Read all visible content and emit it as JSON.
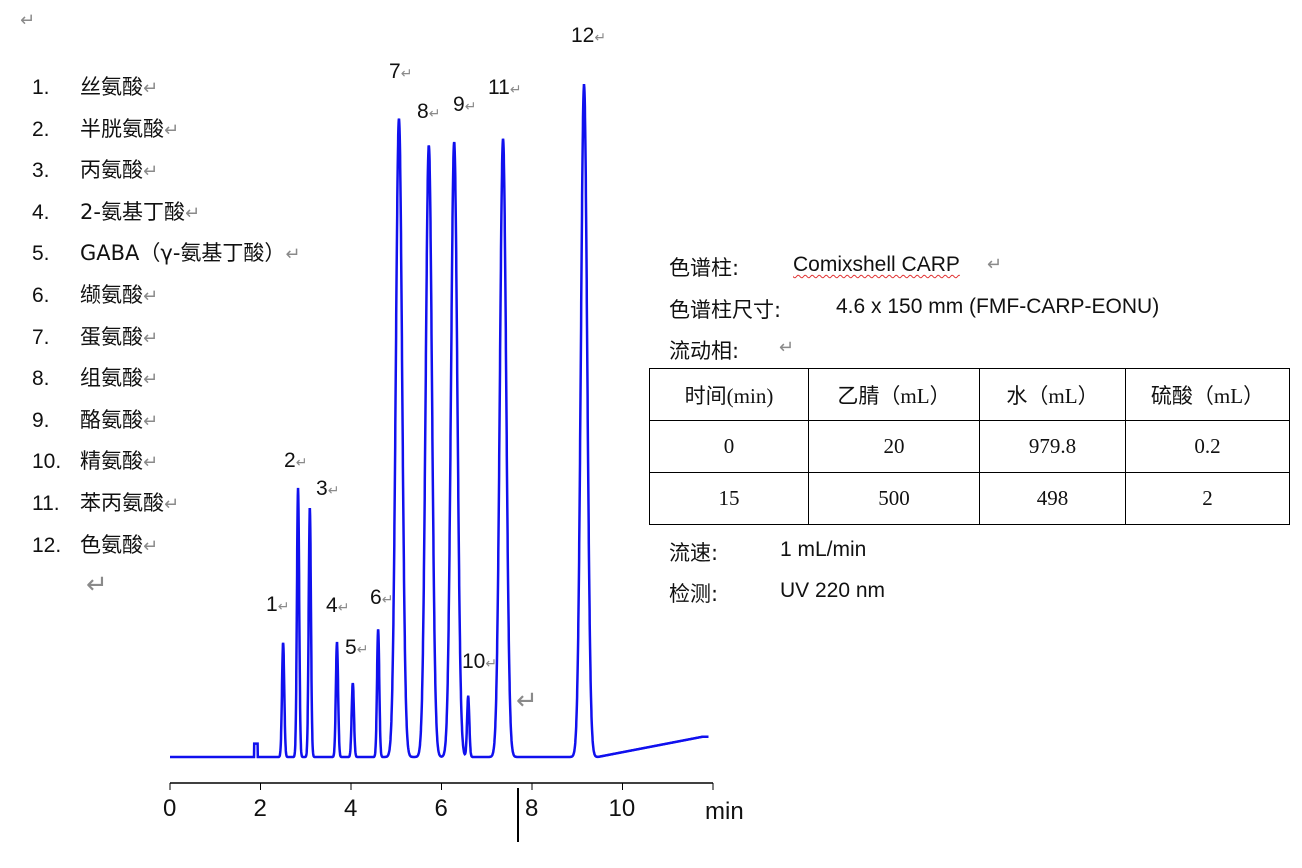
{
  "list": [
    {
      "n": "1.",
      "t": "丝氨酸"
    },
    {
      "n": "2.",
      "t": "半胱氨酸"
    },
    {
      "n": "3.",
      "t": "丙氨酸"
    },
    {
      "n": "4.",
      "t": "2-氨基丁酸"
    },
    {
      "n": "5.",
      "t": "GABA（γ-氨基丁酸）"
    },
    {
      "n": "6.",
      "t": "缬氨酸"
    },
    {
      "n": "7.",
      "t": "蛋氨酸"
    },
    {
      "n": "8.",
      "t": "组氨酸"
    },
    {
      "n": "9.",
      "t": "酪氨酸"
    },
    {
      "n": "10.",
      "t": "精氨酸"
    },
    {
      "n": "11.",
      "t": "苯丙氨酸"
    },
    {
      "n": "12.",
      "t": "色氨酸"
    }
  ],
  "return_mark": "↵",
  "info": {
    "column_label": "色谱柱:",
    "column_value": "Comixshell CARP",
    "size_label": "色谱柱尺寸:",
    "size_value": "4.6 x 150 mm (FMF-CARP-EONU)",
    "mobile_label": "流动相:",
    "flow_label": "流速:",
    "flow_value": "1 mL/min",
    "detect_label": "检测:",
    "detect_value": "UV 220 nm"
  },
  "table": {
    "headers": [
      "时间(min)",
      "乙腈（mL）",
      "水（mL）",
      "硫酸（mL）"
    ],
    "rows": [
      [
        "0",
        "20",
        "979.8",
        "0.2"
      ],
      [
        "15",
        "500",
        "498",
        "2"
      ]
    ]
  },
  "chart_data": {
    "type": "line",
    "xlabel": "min",
    "xlim": [
      0,
      12
    ],
    "xticks": [
      "0",
      "2",
      "4",
      "6",
      "8",
      "10"
    ],
    "line_color": "#1010ee",
    "peaks": [
      {
        "label": "1",
        "time": 2.5,
        "relative_height": 0.17
      },
      {
        "label": "2",
        "time": 2.83,
        "relative_height": 0.4
      },
      {
        "label": "3",
        "time": 3.09,
        "relative_height": 0.37
      },
      {
        "label": "4",
        "time": 3.69,
        "relative_height": 0.17
      },
      {
        "label": "5",
        "time": 4.04,
        "relative_height": 0.11
      },
      {
        "label": "6",
        "time": 4.6,
        "relative_height": 0.19
      },
      {
        "label": "7",
        "time": 5.06,
        "relative_height": 0.95
      },
      {
        "label": "8",
        "time": 5.72,
        "relative_height": 0.91
      },
      {
        "label": "9",
        "time": 6.28,
        "relative_height": 0.915
      },
      {
        "label": "10",
        "time": 6.59,
        "relative_height": 0.09
      },
      {
        "label": "11",
        "time": 7.36,
        "relative_height": 0.92
      },
      {
        "label": "12",
        "time": 9.15,
        "relative_height": 1.0
      }
    ]
  }
}
